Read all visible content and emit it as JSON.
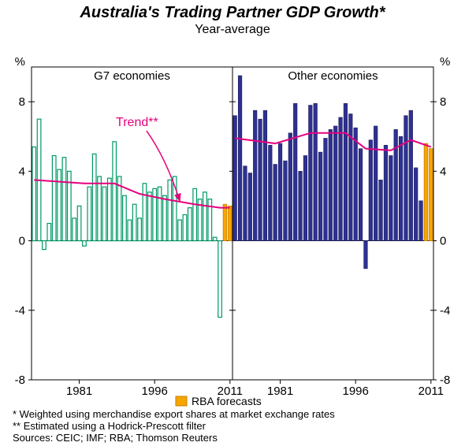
{
  "title": "Australia's Trading Partner GDP Growth*",
  "subtitle": "Year-average",
  "panels": {
    "left": {
      "label": "G7 economies"
    },
    "right": {
      "label": "Other economies"
    }
  },
  "axis": {
    "y": {
      "min": -8,
      "max": 10,
      "ticks": [
        8,
        4,
        0,
        -4,
        -8
      ],
      "unit": "%",
      "label_fontsize": 15,
      "unit_fontsize": 15,
      "tick_color": "#000"
    },
    "x": {
      "ticks": [
        1981,
        1996,
        2011
      ],
      "start": 1972,
      "end": 2011,
      "label_fontsize": 15
    }
  },
  "trend_label": {
    "text": "Trend**",
    "color": "#e6007e",
    "fontsize": 16,
    "arrow_color": "#e6007e"
  },
  "legend": {
    "rba": {
      "label": "RBA forecasts",
      "color": "#f7a600"
    }
  },
  "footnotes": [
    "*  Weighted using merchandise export shares at market exchange rates",
    "** Estimated using a Hodrick-Prescott filter",
    "Sources: CEIC; IMF; RBA; Thomson Reuters"
  ],
  "footnote_fontsize": 13,
  "colors": {
    "g7_bar": {
      "fill": "#ffffff",
      "stroke": "#009966",
      "stroke_width": 1.2
    },
    "other_bar": {
      "fill": "#2e3192",
      "stroke": "#1b1d5c",
      "stroke_width": 0.6
    },
    "rba_bar": {
      "fill": "#f7a600",
      "stroke": "#c77f00",
      "stroke_width": 0.8
    },
    "trend_line": {
      "stroke": "#e6007e",
      "width": 2
    },
    "axis_line": "#000",
    "bg": "#ffffff"
  },
  "bar_width_ratio": 0.72,
  "series": {
    "g7": [
      {
        "y": 1972,
        "v": 5.4
      },
      {
        "y": 1973,
        "v": 7.0
      },
      {
        "y": 1974,
        "v": -0.5
      },
      {
        "y": 1975,
        "v": 1.0
      },
      {
        "y": 1976,
        "v": 4.9
      },
      {
        "y": 1977,
        "v": 4.1
      },
      {
        "y": 1978,
        "v": 4.8
      },
      {
        "y": 1979,
        "v": 4.0
      },
      {
        "y": 1980,
        "v": 1.3
      },
      {
        "y": 1981,
        "v": 2.0
      },
      {
        "y": 1982,
        "v": -0.3
      },
      {
        "y": 1983,
        "v": 3.1
      },
      {
        "y": 1984,
        "v": 5.0
      },
      {
        "y": 1985,
        "v": 3.7
      },
      {
        "y": 1986,
        "v": 3.1
      },
      {
        "y": 1987,
        "v": 3.6
      },
      {
        "y": 1988,
        "v": 5.7
      },
      {
        "y": 1989,
        "v": 3.7
      },
      {
        "y": 1990,
        "v": 2.6
      },
      {
        "y": 1991,
        "v": 1.2
      },
      {
        "y": 1992,
        "v": 2.1
      },
      {
        "y": 1993,
        "v": 1.3
      },
      {
        "y": 1994,
        "v": 3.3
      },
      {
        "y": 1995,
        "v": 2.8
      },
      {
        "y": 1996,
        "v": 3.0
      },
      {
        "y": 1997,
        "v": 3.1
      },
      {
        "y": 1998,
        "v": 2.6
      },
      {
        "y": 1999,
        "v": 3.5
      },
      {
        "y": 2000,
        "v": 3.7
      },
      {
        "y": 2001,
        "v": 1.2
      },
      {
        "y": 2002,
        "v": 1.5
      },
      {
        "y": 2003,
        "v": 1.9
      },
      {
        "y": 2004,
        "v": 3.0
      },
      {
        "y": 2005,
        "v": 2.4
      },
      {
        "y": 2006,
        "v": 2.8
      },
      {
        "y": 2007,
        "v": 2.4
      },
      {
        "y": 2008,
        "v": 0.2
      },
      {
        "y": 2009,
        "v": -4.4
      }
    ],
    "g7_rba": [
      {
        "y": 2010,
        "v": 2.1
      },
      {
        "y": 2011,
        "v": 2.0
      }
    ],
    "g7_trend": [
      {
        "y": 1972,
        "v": 3.5
      },
      {
        "y": 1982,
        "v": 3.3
      },
      {
        "y": 1988,
        "v": 3.3
      },
      {
        "y": 1993,
        "v": 2.7
      },
      {
        "y": 1998,
        "v": 2.4
      },
      {
        "y": 2004,
        "v": 2.1
      },
      {
        "y": 2009,
        "v": 1.9
      },
      {
        "y": 2011,
        "v": 1.9
      }
    ],
    "other": [
      {
        "y": 1972,
        "v": 7.2
      },
      {
        "y": 1973,
        "v": 9.5
      },
      {
        "y": 1974,
        "v": 4.3
      },
      {
        "y": 1975,
        "v": 3.9
      },
      {
        "y": 1976,
        "v": 7.5
      },
      {
        "y": 1977,
        "v": 7.0
      },
      {
        "y": 1978,
        "v": 7.5
      },
      {
        "y": 1979,
        "v": 5.5
      },
      {
        "y": 1980,
        "v": 4.4
      },
      {
        "y": 1981,
        "v": 5.6
      },
      {
        "y": 1982,
        "v": 4.6
      },
      {
        "y": 1983,
        "v": 6.2
      },
      {
        "y": 1984,
        "v": 7.9
      },
      {
        "y": 1985,
        "v": 4.0
      },
      {
        "y": 1986,
        "v": 4.9
      },
      {
        "y": 1987,
        "v": 7.8
      },
      {
        "y": 1988,
        "v": 7.9
      },
      {
        "y": 1989,
        "v": 5.1
      },
      {
        "y": 1990,
        "v": 5.9
      },
      {
        "y": 1991,
        "v": 6.4
      },
      {
        "y": 1992,
        "v": 6.6
      },
      {
        "y": 1993,
        "v": 7.1
      },
      {
        "y": 1994,
        "v": 7.9
      },
      {
        "y": 1995,
        "v": 7.3
      },
      {
        "y": 1996,
        "v": 6.5
      },
      {
        "y": 1997,
        "v": 5.3
      },
      {
        "y": 1998,
        "v": -1.6
      },
      {
        "y": 1999,
        "v": 5.8
      },
      {
        "y": 2000,
        "v": 6.6
      },
      {
        "y": 2001,
        "v": 3.5
      },
      {
        "y": 2002,
        "v": 5.5
      },
      {
        "y": 2003,
        "v": 4.9
      },
      {
        "y": 2004,
        "v": 6.4
      },
      {
        "y": 2005,
        "v": 6.0
      },
      {
        "y": 2006,
        "v": 7.2
      },
      {
        "y": 2007,
        "v": 7.5
      },
      {
        "y": 2008,
        "v": 4.2
      },
      {
        "y": 2009,
        "v": 2.3
      }
    ],
    "other_rba": [
      {
        "y": 2010,
        "v": 5.6
      },
      {
        "y": 2011,
        "v": 5.3
      }
    ],
    "other_trend": [
      {
        "y": 1972,
        "v": 5.9
      },
      {
        "y": 1980,
        "v": 5.6
      },
      {
        "y": 1987,
        "v": 6.2
      },
      {
        "y": 1994,
        "v": 6.2
      },
      {
        "y": 1998,
        "v": 5.3
      },
      {
        "y": 2003,
        "v": 5.2
      },
      {
        "y": 2007,
        "v": 5.8
      },
      {
        "y": 2011,
        "v": 5.4
      }
    ]
  }
}
